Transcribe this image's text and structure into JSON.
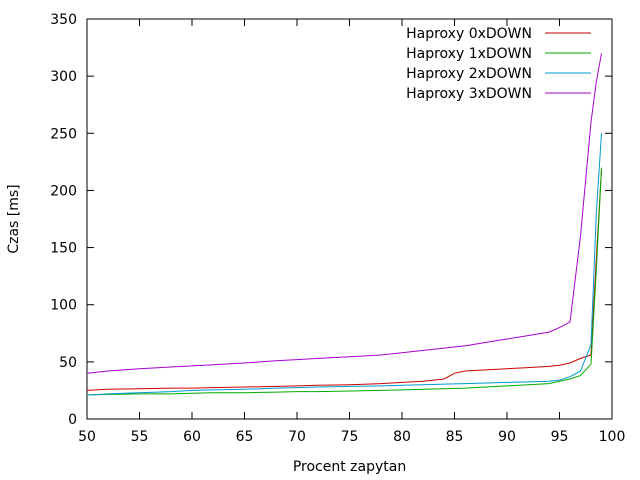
{
  "chart_data": {
    "type": "line",
    "title": "",
    "xlabel": "Procent zapytan",
    "ylabel": "Czas [ms]",
    "xlim": [
      50,
      100
    ],
    "ylim": [
      0,
      350
    ],
    "xticks": [
      50,
      55,
      60,
      65,
      70,
      75,
      80,
      85,
      90,
      95,
      100
    ],
    "yticks": [
      0,
      50,
      100,
      150,
      200,
      250,
      300,
      350
    ],
    "grid": false,
    "legend_position": "top-right",
    "series": [
      {
        "name": "Haproxy 0xDOWN",
        "color": "#cc0000",
        "x": [
          50,
          52,
          55,
          58,
          60,
          62,
          65,
          68,
          70,
          72,
          75,
          78,
          80,
          82,
          84,
          85,
          86,
          88,
          90,
          92,
          94,
          95,
          96,
          97,
          98,
          98.5,
          99
        ],
        "y": [
          25,
          26,
          26.5,
          27,
          27,
          27.5,
          28,
          28.5,
          29,
          29.5,
          30,
          31,
          32,
          33,
          35,
          40,
          42,
          43,
          44,
          45,
          46,
          47,
          49,
          53,
          56,
          140,
          218
        ]
      },
      {
        "name": "Haproxy 1xDOWN",
        "color": "#00aa00",
        "x": [
          50,
          52,
          55,
          58,
          60,
          62,
          65,
          68,
          70,
          72,
          75,
          78,
          80,
          82,
          84,
          86,
          88,
          90,
          92,
          94,
          95,
          96,
          97,
          98,
          98.5,
          99
        ],
        "y": [
          21,
          21.5,
          22,
          22,
          22.5,
          23,
          23,
          23.5,
          24,
          24,
          24.5,
          25,
          25.5,
          26,
          26.5,
          27,
          28,
          29,
          30,
          31,
          33,
          35,
          38,
          48,
          130,
          220
        ]
      },
      {
        "name": "Haproxy 2xDOWN",
        "color": "#0099cc",
        "x": [
          50,
          52,
          55,
          58,
          60,
          62,
          65,
          68,
          70,
          72,
          75,
          78,
          80,
          82,
          84,
          86,
          88,
          90,
          92,
          94,
          95,
          96,
          97,
          98,
          98.5,
          99
        ],
        "y": [
          21,
          22,
          23,
          24,
          25,
          25.5,
          26,
          27,
          27.5,
          28,
          28.5,
          29,
          29.5,
          30,
          30.5,
          31,
          31.5,
          32,
          32.5,
          33,
          34,
          37,
          42,
          65,
          180,
          250
        ]
      },
      {
        "name": "Haproxy 3xDOWN",
        "color": "#aa00cc",
        "x": [
          50,
          52,
          55,
          58,
          60,
          62,
          65,
          68,
          70,
          72,
          75,
          78,
          80,
          82,
          84,
          86,
          88,
          90,
          92,
          94,
          95,
          96,
          97,
          98,
          98.5,
          99
        ],
        "y": [
          40,
          42,
          44,
          45.5,
          46.5,
          47.5,
          49,
          51,
          52,
          53,
          54.5,
          56,
          58,
          60,
          62,
          64,
          67,
          70,
          73,
          76,
          80,
          85,
          160,
          260,
          295,
          320
        ]
      }
    ]
  }
}
